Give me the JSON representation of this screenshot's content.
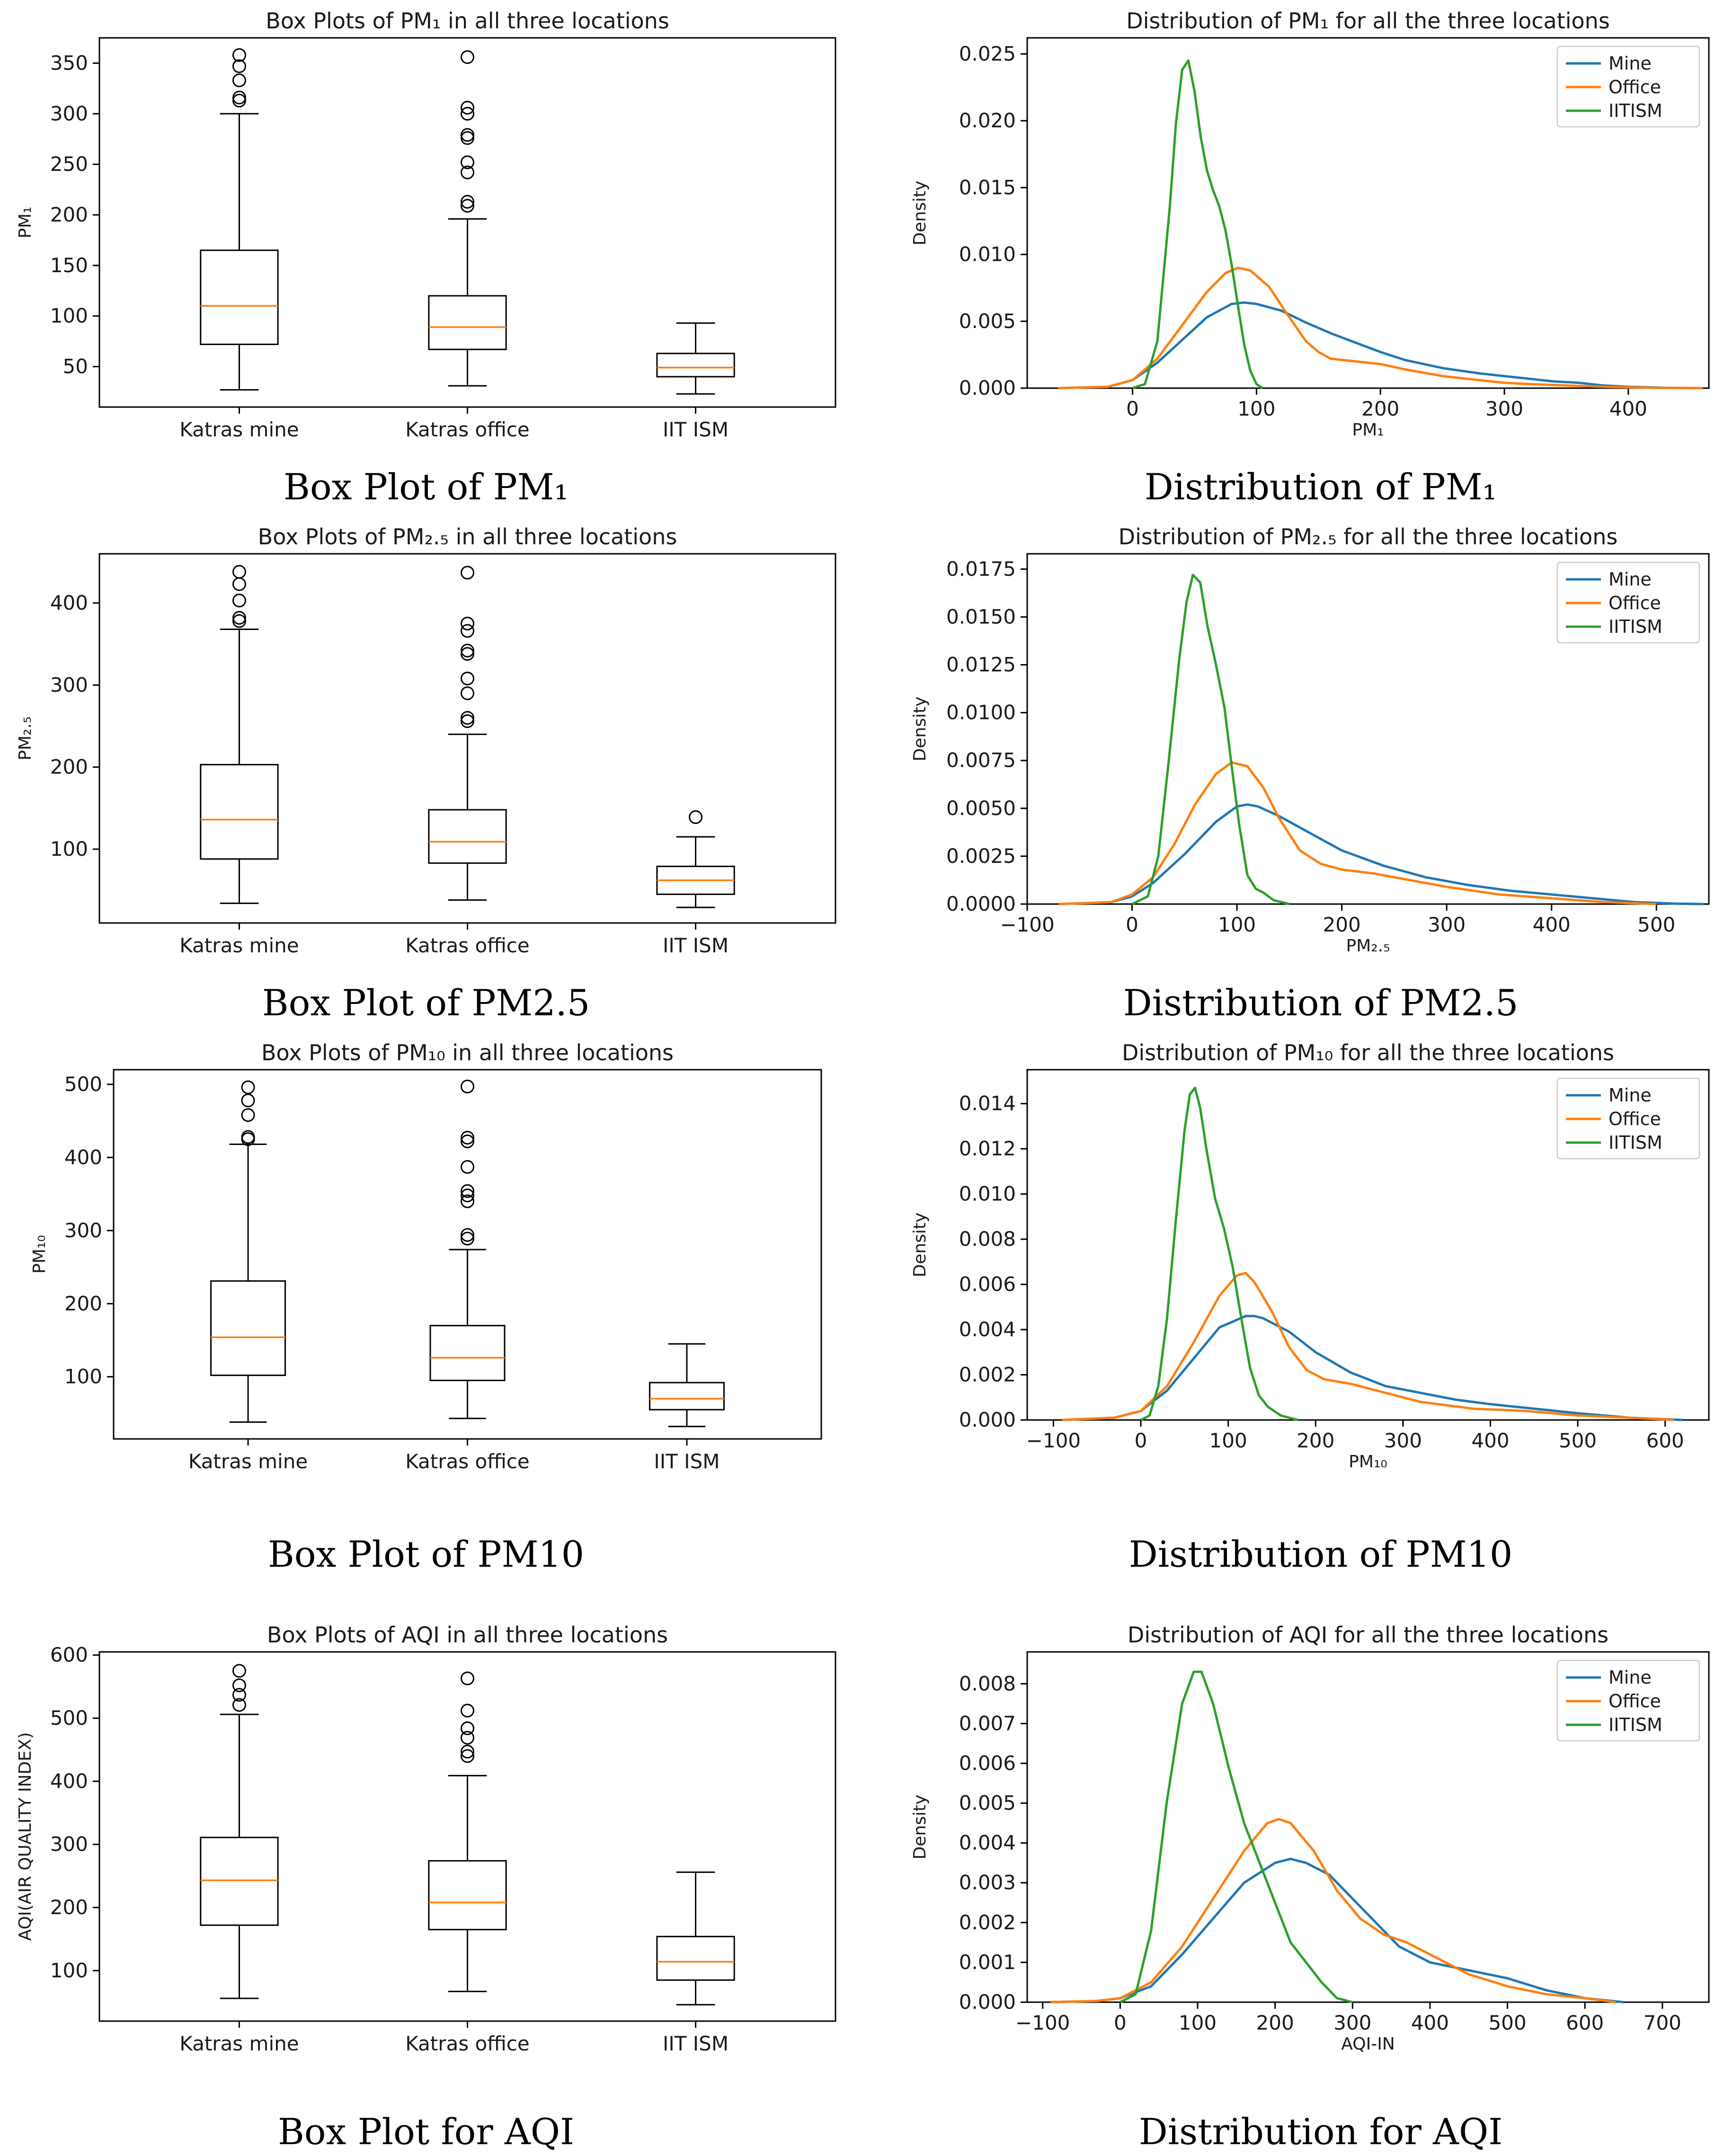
{
  "chart_data": [
    {
      "type": "box",
      "title": "Box Plots of PM₁ in all three locations",
      "caption": "Box Plot of PM₁",
      "ylabel": "PM₁",
      "xlabel": "",
      "ylim": [
        10,
        375
      ],
      "yticks": [
        50,
        100,
        150,
        200,
        250,
        300,
        350
      ],
      "categories": [
        "Katras mine",
        "Katras office",
        "IIT ISM"
      ],
      "boxes": [
        {
          "name": "Katras mine",
          "whislo": 27,
          "q1": 72,
          "med": 110,
          "q3": 165,
          "whishi": 300,
          "fliers": [
            313,
            316,
            333,
            347,
            358
          ]
        },
        {
          "name": "Katras office",
          "whislo": 31,
          "q1": 67,
          "med": 89,
          "q3": 120,
          "whishi": 196,
          "fliers": [
            209,
            213,
            242,
            252,
            276,
            279,
            300,
            306,
            356
          ]
        },
        {
          "name": "IIT ISM",
          "whislo": 23,
          "q1": 40,
          "med": 49,
          "q3": 63,
          "whishi": 93,
          "fliers": []
        }
      ]
    },
    {
      "type": "line",
      "title": "Distribution of PM₁ for all the three locations",
      "caption": "Distribution of PM₁",
      "xlabel": "PM₁",
      "ylabel": "Density",
      "xlim": [
        -85,
        465
      ],
      "ylim": [
        0,
        0.0262
      ],
      "xticks": [
        0,
        100,
        200,
        300,
        400
      ],
      "yticks": [
        0.0,
        0.005,
        0.01,
        0.015,
        0.02,
        0.025
      ],
      "ytick_labels": [
        "0.000",
        "0.005",
        "0.010",
        "0.015",
        "0.020",
        "0.025"
      ],
      "legend": "top-right",
      "series": [
        {
          "name": "Mine",
          "color": "#1f77b4",
          "x": [
            -60,
            -20,
            0,
            20,
            40,
            60,
            80,
            90,
            100,
            120,
            140,
            160,
            180,
            200,
            220,
            250,
            280,
            300,
            320,
            340,
            360,
            380,
            400,
            430,
            460
          ],
          "y": [
            0,
            0.0001,
            0.0006,
            0.0019,
            0.0036,
            0.0053,
            0.0063,
            0.0064,
            0.0063,
            0.0058,
            0.0049,
            0.0041,
            0.0034,
            0.0027,
            0.0021,
            0.0015,
            0.0011,
            0.0009,
            0.0007,
            0.0005,
            0.0004,
            0.0002,
            0.0001,
            3e-05,
            0
          ]
        },
        {
          "name": "Office",
          "color": "#ff7f0e",
          "x": [
            -60,
            -20,
            0,
            20,
            40,
            60,
            75,
            85,
            95,
            110,
            125,
            140,
            150,
            160,
            180,
            200,
            220,
            250,
            280,
            300,
            320,
            350,
            380,
            420,
            460
          ],
          "y": [
            0,
            0.0001,
            0.0006,
            0.0022,
            0.0047,
            0.0072,
            0.0086,
            0.009,
            0.0088,
            0.0076,
            0.0055,
            0.0035,
            0.0027,
            0.0022,
            0.002,
            0.0018,
            0.0014,
            0.0009,
            0.0006,
            0.0004,
            0.0003,
            0.0002,
            0.0001,
            2e-05,
            0
          ]
        },
        {
          "name": "IITISM",
          "color": "#2ca02c",
          "x": [
            0,
            10,
            20,
            30,
            35,
            40,
            45,
            50,
            55,
            60,
            65,
            70,
            75,
            80,
            85,
            90,
            95,
            100,
            105
          ],
          "y": [
            0,
            0.0003,
            0.0035,
            0.0135,
            0.0198,
            0.0238,
            0.0245,
            0.0222,
            0.0188,
            0.0163,
            0.0148,
            0.0136,
            0.0118,
            0.0092,
            0.0062,
            0.0033,
            0.0013,
            0.0003,
            0
          ]
        }
      ]
    },
    {
      "type": "box",
      "title": "Box Plots of PM₂.₅ in all three locations",
      "caption": "Box Plot of PM2.5",
      "ylabel": "PM₂.₅",
      "xlabel": "",
      "ylim": [
        10,
        460
      ],
      "yticks": [
        100,
        200,
        300,
        400
      ],
      "categories": [
        "Katras mine",
        "Katras office",
        "IIT ISM"
      ],
      "boxes": [
        {
          "name": "Katras mine",
          "whislo": 34,
          "q1": 88,
          "med": 136,
          "q3": 203,
          "whishi": 368,
          "fliers": [
            378,
            382,
            403,
            423,
            438
          ]
        },
        {
          "name": "Katras office",
          "whislo": 38,
          "q1": 83,
          "med": 109,
          "q3": 148,
          "whishi": 240,
          "fliers": [
            256,
            260,
            290,
            308,
            338,
            342,
            366,
            375,
            437
          ]
        },
        {
          "name": "IIT ISM",
          "whislo": 29,
          "q1": 45,
          "med": 62,
          "q3": 79,
          "whishi": 115,
          "fliers": [
            139
          ]
        }
      ]
    },
    {
      "type": "line",
      "title": "Distribution of PM₂.₅ for all the three locations",
      "caption": "Distribution of PM2.5",
      "xlabel": "PM₂.₅",
      "ylabel": "Density",
      "xlim": [
        -100,
        550
      ],
      "ylim": [
        0,
        0.0183
      ],
      "xticks": [
        -100,
        0,
        100,
        200,
        300,
        400,
        500
      ],
      "xtick_labels": [
        "−100",
        "0",
        "100",
        "200",
        "300",
        "400",
        "500"
      ],
      "yticks": [
        0.0,
        0.0025,
        0.005,
        0.0075,
        0.01,
        0.0125,
        0.015,
        0.0175
      ],
      "ytick_labels": [
        "0.0000",
        "0.0025",
        "0.0050",
        "0.0075",
        "0.0100",
        "0.0125",
        "0.0150",
        "0.0175"
      ],
      "legend": "top-right",
      "series": [
        {
          "name": "Mine",
          "color": "#1f77b4",
          "x": [
            -70,
            -20,
            0,
            20,
            50,
            80,
            100,
            110,
            120,
            140,
            170,
            200,
            240,
            280,
            320,
            360,
            400,
            440,
            480,
            520,
            545
          ],
          "y": [
            0,
            0.0001,
            0.0004,
            0.0011,
            0.0026,
            0.0043,
            0.0051,
            0.0052,
            0.0051,
            0.0046,
            0.0037,
            0.0028,
            0.002,
            0.0014,
            0.001,
            0.0007,
            0.0005,
            0.0003,
            0.0001,
            2e-05,
            0
          ]
        },
        {
          "name": "Office",
          "color": "#ff7f0e",
          "x": [
            -70,
            -20,
            0,
            20,
            40,
            60,
            80,
            95,
            110,
            125,
            140,
            160,
            180,
            200,
            230,
            260,
            300,
            350,
            400,
            450,
            500
          ],
          "y": [
            0,
            0.0001,
            0.0005,
            0.0014,
            0.0031,
            0.0052,
            0.0068,
            0.0074,
            0.0072,
            0.0061,
            0.0045,
            0.0028,
            0.0021,
            0.0018,
            0.0016,
            0.0013,
            0.0009,
            0.0005,
            0.0003,
            0.0001,
            0
          ]
        },
        {
          "name": "IITISM",
          "color": "#2ca02c",
          "x": [
            0,
            15,
            25,
            35,
            45,
            52,
            58,
            65,
            72,
            80,
            88,
            95,
            102,
            110,
            118,
            125,
            135,
            150
          ],
          "y": [
            0,
            0.0004,
            0.0025,
            0.0075,
            0.0128,
            0.0158,
            0.0172,
            0.0168,
            0.0145,
            0.0125,
            0.0103,
            0.0072,
            0.0042,
            0.0015,
            0.0008,
            0.0006,
            0.0002,
            0
          ]
        }
      ]
    },
    {
      "type": "box",
      "title": "Box Plots of PM₁₀ in all three locations",
      "caption": "Box Plot of PM10",
      "ylabel": "PM₁₀",
      "xlabel": "",
      "ylim": [
        15,
        520
      ],
      "yticks": [
        100,
        200,
        300,
        400,
        500
      ],
      "categories": [
        "Katras mine",
        "Katras office",
        "IIT ISM"
      ],
      "boxes": [
        {
          "name": "Katras mine",
          "whislo": 38,
          "q1": 102,
          "med": 154,
          "q3": 231,
          "whishi": 418,
          "fliers": [
            425,
            428,
            458,
            478,
            496
          ]
        },
        {
          "name": "Katras office",
          "whislo": 43,
          "q1": 95,
          "med": 126,
          "q3": 170,
          "whishi": 274,
          "fliers": [
            289,
            294,
            340,
            348,
            354,
            387,
            422,
            427,
            497
          ]
        },
        {
          "name": "IIT ISM",
          "whislo": 32,
          "q1": 55,
          "med": 70,
          "q3": 92,
          "whishi": 145,
          "fliers": []
        }
      ]
    },
    {
      "type": "line",
      "title": "Distribution of PM₁₀ for all the three locations",
      "caption": "Distribution of PM10",
      "xlabel": "PM₁₀",
      "ylabel": "Density",
      "xlim": [
        -130,
        650
      ],
      "ylim": [
        0,
        0.0155
      ],
      "xticks": [
        -100,
        0,
        100,
        200,
        300,
        400,
        500,
        600
      ],
      "xtick_labels": [
        "−100",
        "0",
        "100",
        "200",
        "300",
        "400",
        "500",
        "600"
      ],
      "yticks": [
        0.0,
        0.002,
        0.004,
        0.006,
        0.008,
        0.01,
        0.012,
        0.014
      ],
      "ytick_labels": [
        "0.000",
        "0.002",
        "0.004",
        "0.006",
        "0.008",
        "0.010",
        "0.012",
        "0.014"
      ],
      "legend": "top-right",
      "series": [
        {
          "name": "Mine",
          "color": "#1f77b4",
          "x": [
            -90,
            -30,
            0,
            30,
            60,
            90,
            120,
            130,
            140,
            170,
            200,
            240,
            280,
            320,
            360,
            400,
            450,
            500,
            560,
            620
          ],
          "y": [
            0,
            0.0001,
            0.0004,
            0.0013,
            0.0027,
            0.0041,
            0.0046,
            0.0046,
            0.0045,
            0.0039,
            0.003,
            0.0021,
            0.0015,
            0.0012,
            0.0009,
            0.0007,
            0.0005,
            0.0003,
            0.0001,
            0
          ]
        },
        {
          "name": "Office",
          "color": "#ff7f0e",
          "x": [
            -90,
            -30,
            0,
            30,
            60,
            90,
            110,
            120,
            130,
            150,
            170,
            190,
            210,
            240,
            280,
            320,
            380,
            440,
            500,
            560,
            610
          ],
          "y": [
            0,
            0.0001,
            0.0004,
            0.0015,
            0.0034,
            0.0055,
            0.0064,
            0.0065,
            0.0061,
            0.0048,
            0.0032,
            0.0022,
            0.0018,
            0.0016,
            0.0012,
            0.0008,
            0.0005,
            0.0004,
            0.0002,
            0.0001,
            0
          ]
        },
        {
          "name": "IITISM",
          "color": "#2ca02c",
          "x": [
            0,
            10,
            20,
            30,
            40,
            50,
            56,
            62,
            68,
            75,
            85,
            95,
            105,
            115,
            125,
            135,
            145,
            160,
            180
          ],
          "y": [
            0,
            0.0002,
            0.0015,
            0.0045,
            0.0088,
            0.0128,
            0.0144,
            0.0147,
            0.0138,
            0.012,
            0.0098,
            0.0085,
            0.0068,
            0.0045,
            0.0023,
            0.0011,
            0.0006,
            0.0002,
            0
          ]
        }
      ]
    },
    {
      "type": "box",
      "title": "Box Plots of AQI in all three locations",
      "caption": "Box Plot for AQI",
      "ylabel": "AQI(AIR QUALITY INDEX)",
      "xlabel": "",
      "ylim": [
        20,
        605
      ],
      "yticks": [
        100,
        200,
        300,
        400,
        500,
        600
      ],
      "categories": [
        "Katras mine",
        "Katras office",
        "IIT ISM"
      ],
      "boxes": [
        {
          "name": "Katras mine",
          "whislo": 56,
          "q1": 172,
          "med": 243,
          "q3": 311,
          "whishi": 506,
          "fliers": [
            521,
            537,
            552,
            575
          ]
        },
        {
          "name": "Katras office",
          "whislo": 67,
          "q1": 165,
          "med": 208,
          "q3": 274,
          "whishi": 409,
          "fliers": [
            440,
            447,
            469,
            484,
            512,
            563
          ]
        },
        {
          "name": "IIT ISM",
          "whislo": 46,
          "q1": 85,
          "med": 114,
          "q3": 154,
          "whishi": 256,
          "fliers": []
        }
      ]
    },
    {
      "type": "line",
      "title": "Distribution of AQI for all the three locations",
      "caption": "Distribution for AQI",
      "xlabel": "AQI-IN",
      "ylabel": "Density",
      "xlim": [
        -120,
        760
      ],
      "ylim": [
        0,
        0.0088
      ],
      "xticks": [
        -100,
        0,
        100,
        200,
        300,
        400,
        500,
        600,
        700
      ],
      "xtick_labels": [
        "−100",
        "0",
        "100",
        "200",
        "300",
        "400",
        "500",
        "600",
        "700"
      ],
      "yticks": [
        0.0,
        0.001,
        0.002,
        0.003,
        0.004,
        0.005,
        0.006,
        0.007,
        0.008
      ],
      "ytick_labels": [
        "0.000",
        "0.001",
        "0.002",
        "0.003",
        "0.004",
        "0.005",
        "0.006",
        "0.007",
        "0.008"
      ],
      "legend": "top-right",
      "series": [
        {
          "name": "Mine",
          "color": "#1f77b4",
          "x": [
            -90,
            -30,
            0,
            40,
            80,
            120,
            160,
            200,
            220,
            240,
            270,
            300,
            330,
            360,
            400,
            450,
            500,
            550,
            600,
            650
          ],
          "y": [
            0,
            3e-05,
            0.0001,
            0.0004,
            0.0012,
            0.0021,
            0.003,
            0.0035,
            0.0036,
            0.0035,
            0.0032,
            0.0026,
            0.002,
            0.0014,
            0.001,
            0.0008,
            0.0006,
            0.0003,
            0.0001,
            0
          ]
        },
        {
          "name": "Office",
          "color": "#ff7f0e",
          "x": [
            -90,
            -30,
            0,
            40,
            80,
            120,
            160,
            190,
            205,
            220,
            250,
            280,
            310,
            340,
            370,
            400,
            450,
            500,
            550,
            600,
            640
          ],
          "y": [
            0,
            3e-05,
            0.0001,
            0.0005,
            0.0014,
            0.0026,
            0.0038,
            0.0045,
            0.0046,
            0.0045,
            0.0038,
            0.0028,
            0.0021,
            0.0017,
            0.0015,
            0.0012,
            0.0007,
            0.0004,
            0.0002,
            0.0001,
            0
          ]
        },
        {
          "name": "IITISM",
          "color": "#2ca02c",
          "x": [
            0,
            20,
            40,
            60,
            80,
            95,
            105,
            120,
            140,
            160,
            180,
            200,
            220,
            240,
            260,
            280,
            300
          ],
          "y": [
            0,
            0.0002,
            0.0018,
            0.005,
            0.0075,
            0.0083,
            0.0083,
            0.0075,
            0.0059,
            0.0045,
            0.0035,
            0.0025,
            0.0015,
            0.001,
            0.0005,
            0.0001,
            0
          ]
        }
      ]
    }
  ]
}
